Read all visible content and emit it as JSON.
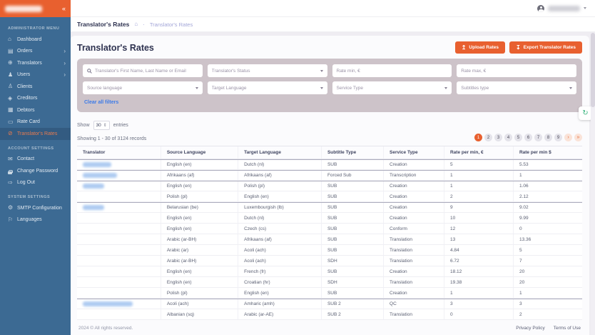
{
  "colors": {
    "accent": "#E8602F",
    "sidebar": "#3C6A93",
    "sidebar_active": "#335B81",
    "filter_bg": "#CDC3C9",
    "link": "#3D7BE8",
    "crumb": "#A3A6D8"
  },
  "brand": {
    "logo_redacted": true
  },
  "topbar": {
    "user_name_redacted": true
  },
  "sidebar": {
    "sections": [
      {
        "label": "ADMINISTRATOR MENU",
        "items": [
          {
            "label": "Dashboard",
            "icon": "home"
          },
          {
            "label": "Orders",
            "icon": "orders",
            "chevron": true
          },
          {
            "label": "Translators",
            "icon": "globe",
            "chevron": true
          },
          {
            "label": "Users",
            "icon": "users",
            "chevron": true
          },
          {
            "label": "Clients",
            "icon": "clients"
          },
          {
            "label": "Creditors",
            "icon": "creditors"
          },
          {
            "label": "Debtors",
            "icon": "debtors"
          },
          {
            "label": "Rate Card",
            "icon": "rate-card"
          },
          {
            "label": "Translator's Rates",
            "icon": "rates",
            "active": true
          }
        ]
      },
      {
        "label": "ACCOUNT SETTINGS",
        "items": [
          {
            "label": "Contact",
            "icon": "contact"
          },
          {
            "label": "Change Password",
            "icon": "password"
          },
          {
            "label": "Log Out",
            "icon": "logout"
          }
        ]
      },
      {
        "label": "SYSTEM SETTINGS",
        "items": [
          {
            "label": "SMTP Configuration",
            "icon": "gear"
          },
          {
            "label": "Languages",
            "icon": "languages"
          }
        ]
      }
    ]
  },
  "breadcrumb": {
    "page": "Translator's Rates",
    "separator": "·",
    "crumb": "Translator's Rates"
  },
  "page": {
    "title": "Translator's Rates"
  },
  "actions": {
    "upload": "Upload Rates",
    "export": "Export Translator Rates"
  },
  "filters": {
    "fields": [
      {
        "name": "search",
        "type": "search",
        "placeholder": "Translator's First Name, Last Name or Email"
      },
      {
        "name": "status",
        "type": "select",
        "placeholder": "Translator's Status"
      },
      {
        "name": "rate-min",
        "type": "input",
        "placeholder": "Rate min, €"
      },
      {
        "name": "rate-max",
        "type": "input",
        "placeholder": "Rate max, €"
      },
      {
        "name": "source-language",
        "type": "select",
        "placeholder": "Source language"
      },
      {
        "name": "target-language",
        "type": "select",
        "placeholder": "Target Language"
      },
      {
        "name": "service-type",
        "type": "select",
        "placeholder": "Service Type"
      },
      {
        "name": "subtitles-type",
        "type": "select",
        "placeholder": "Subtitles type"
      }
    ],
    "clear_label": "Clear all filters"
  },
  "table_controls": {
    "show_label": "Show",
    "entries_value": "30",
    "entries_label": "entries",
    "showing_text": "Showing 1 - 30 of 3124 records"
  },
  "pagination": {
    "pages": [
      "1",
      "2",
      "3",
      "4",
      "5",
      "6",
      "7",
      "8",
      "9"
    ],
    "active": "1",
    "next": "›",
    "last": "»"
  },
  "table": {
    "headers": [
      "Translator",
      "Source Language",
      "Target Language",
      "Subtitle Type",
      "Service Type",
      "Rate per min, €",
      "Rate per min $"
    ],
    "rows": [
      {
        "translator_redacted": true,
        "redacted_width": 40,
        "group_start": true,
        "source_language": "English (en)",
        "target_language": "Dutch (nl)",
        "subtitle_type": "SUB",
        "service_type": "Creation",
        "rate_eur": "5",
        "rate_usd": "5.53"
      },
      {
        "translator_redacted": true,
        "redacted_width": 48,
        "group_start": true,
        "source_language": "Afrikaans (af)",
        "target_language": "Afrikaans (af)",
        "subtitle_type": "Forced Sub",
        "service_type": "Transcription",
        "rate_eur": "1",
        "rate_usd": "1"
      },
      {
        "translator_redacted": true,
        "redacted_width": 30,
        "group_start": true,
        "source_language": "English (en)",
        "target_language": "Polish (pl)",
        "subtitle_type": "SUB",
        "service_type": "Creation",
        "rate_eur": "1",
        "rate_usd": "1.06"
      },
      {
        "translator_redacted": false,
        "redacted_width": 0,
        "group_start": false,
        "source_language": "Polish (pl)",
        "target_language": "English (en)",
        "subtitle_type": "SUB",
        "service_type": "Creation",
        "rate_eur": "2",
        "rate_usd": "2.12"
      },
      {
        "translator_redacted": true,
        "redacted_width": 30,
        "group_start": true,
        "source_language": "Belarusian (be)",
        "target_language": "Luxembourgish (lb)",
        "subtitle_type": "SUB",
        "service_type": "Creation",
        "rate_eur": "9",
        "rate_usd": "9.02"
      },
      {
        "translator_redacted": false,
        "redacted_width": 0,
        "group_start": false,
        "source_language": "English (en)",
        "target_language": "Dutch (nl)",
        "subtitle_type": "SUB",
        "service_type": "Creation",
        "rate_eur": "10",
        "rate_usd": "9.99"
      },
      {
        "translator_redacted": false,
        "redacted_width": 0,
        "group_start": false,
        "source_language": "English (en)",
        "target_language": "Czech (cs)",
        "subtitle_type": "SUB",
        "service_type": "Conform",
        "rate_eur": "12",
        "rate_usd": "0"
      },
      {
        "translator_redacted": false,
        "redacted_width": 0,
        "group_start": false,
        "source_language": "Arabic (ar-BH)",
        "target_language": "Afrikaans (af)",
        "subtitle_type": "SUB",
        "service_type": "Translation",
        "rate_eur": "13",
        "rate_usd": "13.36"
      },
      {
        "translator_redacted": false,
        "redacted_width": 0,
        "group_start": false,
        "source_language": "Arabic (ar)",
        "target_language": "Acoli (ach)",
        "subtitle_type": "SUB",
        "service_type": "Translation",
        "rate_eur": "4.84",
        "rate_usd": "5"
      },
      {
        "translator_redacted": false,
        "redacted_width": 0,
        "group_start": false,
        "source_language": "Arabic (ar-BH)",
        "target_language": "Acoli (ach)",
        "subtitle_type": "SDH",
        "service_type": "Translation",
        "rate_eur": "6.72",
        "rate_usd": "7"
      },
      {
        "translator_redacted": false,
        "redacted_width": 0,
        "group_start": false,
        "source_language": "English (en)",
        "target_language": "French (fr)",
        "subtitle_type": "SUB",
        "service_type": "Creation",
        "rate_eur": "18.12",
        "rate_usd": "20"
      },
      {
        "translator_redacted": false,
        "redacted_width": 0,
        "group_start": false,
        "source_language": "English (en)",
        "target_language": "Croatian (hr)",
        "subtitle_type": "SDH",
        "service_type": "Translation",
        "rate_eur": "19.38",
        "rate_usd": "20"
      },
      {
        "translator_redacted": false,
        "redacted_width": 0,
        "group_start": false,
        "source_language": "Polish (pl)",
        "target_language": "English (en)",
        "subtitle_type": "SUB",
        "service_type": "Creation",
        "rate_eur": "1",
        "rate_usd": "1"
      },
      {
        "translator_redacted": true,
        "redacted_width": 70,
        "group_start": true,
        "source_language": "Acoli (ach)",
        "target_language": "Amharic (amh)",
        "subtitle_type": "SUB 2",
        "service_type": "QC",
        "rate_eur": "3",
        "rate_usd": "3"
      },
      {
        "translator_redacted": false,
        "redacted_width": 0,
        "group_start": false,
        "source_language": "Albanian (sq)",
        "target_language": "Arabic (ar-AE)",
        "subtitle_type": "SUB 2",
        "service_type": "Translation",
        "rate_eur": "0",
        "rate_usd": "2"
      }
    ]
  },
  "footer": {
    "copyright": "2024 © All rights reserved.",
    "links": [
      "Privacy Policy",
      "Terms of Use"
    ]
  }
}
